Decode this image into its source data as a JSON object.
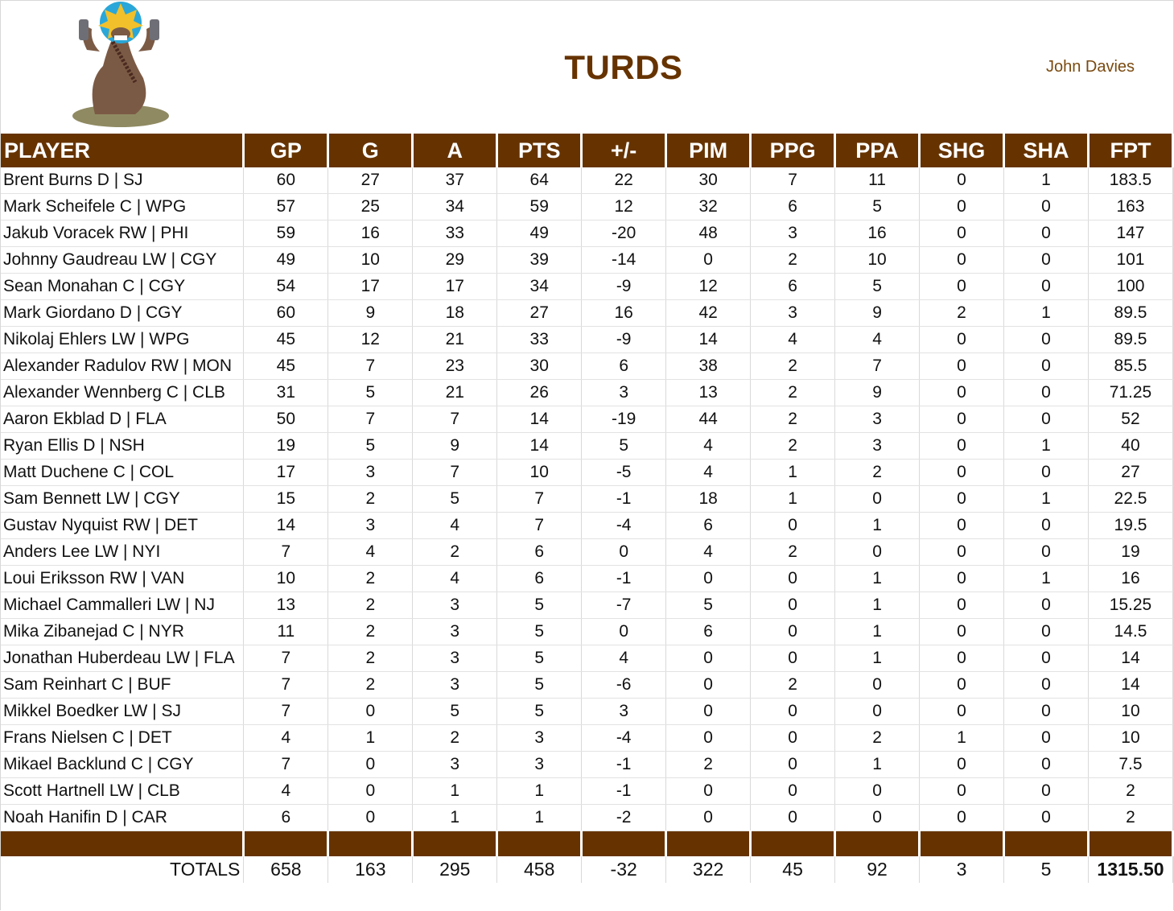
{
  "header": {
    "team_name": "TURDS",
    "owner": "John Davies",
    "logo_icon": "cartoon-bandit-figure-logo"
  },
  "colors": {
    "header_bg": "#663300",
    "title": "#663300"
  },
  "columns": [
    "PLAYER",
    "GP",
    "G",
    "A",
    "PTS",
    "+/-",
    "PIM",
    "PPG",
    "PPA",
    "SHG",
    "SHA",
    "FPT"
  ],
  "rows": [
    [
      "Brent Burns D | SJ",
      "60",
      "27",
      "37",
      "64",
      "22",
      "30",
      "7",
      "11",
      "0",
      "1",
      "183.5"
    ],
    [
      "Mark Scheifele C | WPG",
      "57",
      "25",
      "34",
      "59",
      "12",
      "32",
      "6",
      "5",
      "0",
      "0",
      "163"
    ],
    [
      "Jakub Voracek RW | PHI",
      "59",
      "16",
      "33",
      "49",
      "-20",
      "48",
      "3",
      "16",
      "0",
      "0",
      "147"
    ],
    [
      "Johnny Gaudreau LW | CGY",
      "49",
      "10",
      "29",
      "39",
      "-14",
      "0",
      "2",
      "10",
      "0",
      "0",
      "101"
    ],
    [
      "Sean Monahan C | CGY",
      "54",
      "17",
      "17",
      "34",
      "-9",
      "12",
      "6",
      "5",
      "0",
      "0",
      "100"
    ],
    [
      "Mark Giordano D | CGY",
      "60",
      "9",
      "18",
      "27",
      "16",
      "42",
      "3",
      "9",
      "2",
      "1",
      "89.5"
    ],
    [
      "Nikolaj Ehlers LW | WPG",
      "45",
      "12",
      "21",
      "33",
      "-9",
      "14",
      "4",
      "4",
      "0",
      "0",
      "89.5"
    ],
    [
      "Alexander Radulov RW | MON",
      "45",
      "7",
      "23",
      "30",
      "6",
      "38",
      "2",
      "7",
      "0",
      "0",
      "85.5"
    ],
    [
      "Alexander Wennberg C | CLB",
      "31",
      "5",
      "21",
      "26",
      "3",
      "13",
      "2",
      "9",
      "0",
      "0",
      "71.25"
    ],
    [
      "Aaron Ekblad D | FLA",
      "50",
      "7",
      "7",
      "14",
      "-19",
      "44",
      "2",
      "3",
      "0",
      "0",
      "52"
    ],
    [
      "Ryan Ellis D | NSH",
      "19",
      "5",
      "9",
      "14",
      "5",
      "4",
      "2",
      "3",
      "0",
      "1",
      "40"
    ],
    [
      "Matt Duchene C | COL",
      "17",
      "3",
      "7",
      "10",
      "-5",
      "4",
      "1",
      "2",
      "0",
      "0",
      "27"
    ],
    [
      "Sam Bennett LW | CGY",
      "15",
      "2",
      "5",
      "7",
      "-1",
      "18",
      "1",
      "0",
      "0",
      "1",
      "22.5"
    ],
    [
      "Gustav Nyquist RW | DET",
      "14",
      "3",
      "4",
      "7",
      "-4",
      "6",
      "0",
      "1",
      "0",
      "0",
      "19.5"
    ],
    [
      "Anders Lee LW | NYI",
      "7",
      "4",
      "2",
      "6",
      "0",
      "4",
      "2",
      "0",
      "0",
      "0",
      "19"
    ],
    [
      "Loui Eriksson RW | VAN",
      "10",
      "2",
      "4",
      "6",
      "-1",
      "0",
      "0",
      "1",
      "0",
      "1",
      "16"
    ],
    [
      "Michael Cammalleri LW | NJ",
      "13",
      "2",
      "3",
      "5",
      "-7",
      "5",
      "0",
      "1",
      "0",
      "0",
      "15.25"
    ],
    [
      "Mika Zibanejad C | NYR",
      "11",
      "2",
      "3",
      "5",
      "0",
      "6",
      "0",
      "1",
      "0",
      "0",
      "14.5"
    ],
    [
      "Jonathan Huberdeau LW | FLA",
      "7",
      "2",
      "3",
      "5",
      "4",
      "0",
      "0",
      "1",
      "0",
      "0",
      "14"
    ],
    [
      "Sam Reinhart C | BUF",
      "7",
      "2",
      "3",
      "5",
      "-6",
      "0",
      "2",
      "0",
      "0",
      "0",
      "14"
    ],
    [
      "Mikkel Boedker LW | SJ",
      "7",
      "0",
      "5",
      "5",
      "3",
      "0",
      "0",
      "0",
      "0",
      "0",
      "10"
    ],
    [
      "Frans Nielsen C | DET",
      "4",
      "1",
      "2",
      "3",
      "-4",
      "0",
      "0",
      "2",
      "1",
      "0",
      "10"
    ],
    [
      "Mikael Backlund C | CGY",
      "7",
      "0",
      "3",
      "3",
      "-1",
      "2",
      "0",
      "1",
      "0",
      "0",
      "7.5"
    ],
    [
      "Scott Hartnell LW | CLB",
      "4",
      "0",
      "1",
      "1",
      "-1",
      "0",
      "0",
      "0",
      "0",
      "0",
      "2"
    ],
    [
      "Noah Hanifin D | CAR",
      "6",
      "0",
      "1",
      "1",
      "-2",
      "0",
      "0",
      "0",
      "0",
      "0",
      "2"
    ]
  ],
  "totals": [
    "TOTALS",
    "658",
    "163",
    "295",
    "458",
    "-32",
    "322",
    "45",
    "92",
    "3",
    "5",
    "1315.50"
  ]
}
